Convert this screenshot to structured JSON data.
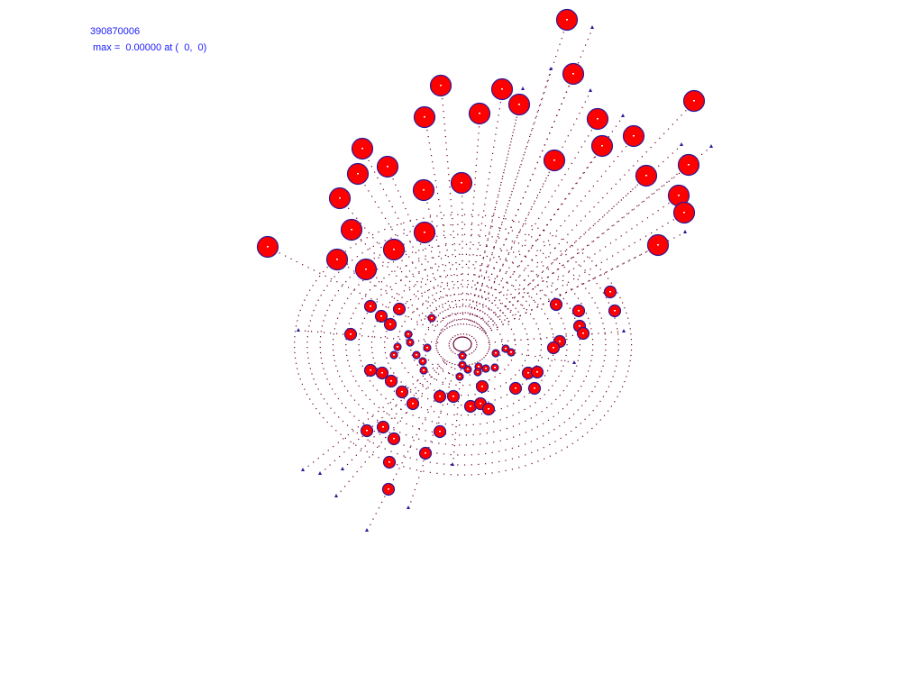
{
  "header": {
    "id_label": "390870006",
    "max_label": "max =  0.00000 at (  0,  0)"
  },
  "colors": {
    "text": "#1a1aff",
    "marker_fill": "#ff0000",
    "marker_outline": "#2a1a9a",
    "dots": "#6a0030"
  }
}
